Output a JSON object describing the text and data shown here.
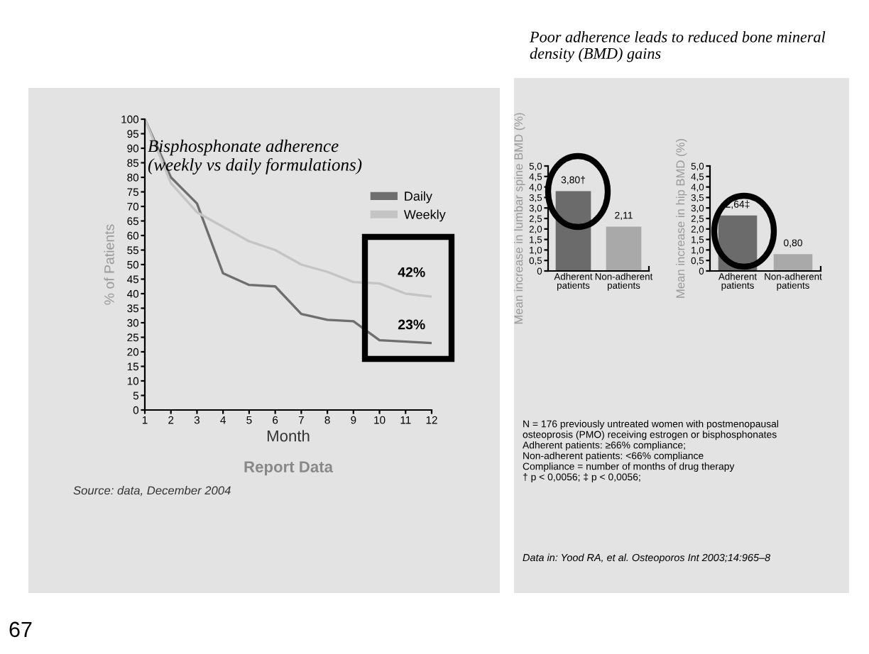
{
  "chart_data": [
    {
      "type": "line",
      "title": "Bisphosphonate adherence\n(weekly vs daily formulations)",
      "xlabel": "Month",
      "ylabel": "% of Patients",
      "x": [
        1,
        2,
        3,
        4,
        5,
        6,
        7,
        8,
        9,
        10,
        11,
        12
      ],
      "series": [
        {
          "name": "Daily",
          "color": "#6e6e6e",
          "values": [
            100,
            80,
            71,
            47,
            43,
            42.5,
            33,
            31,
            30.5,
            24,
            23.5,
            23
          ]
        },
        {
          "name": "Weekly",
          "color": "#c4c4c4",
          "values": [
            100,
            78,
            68,
            63,
            58,
            55,
            50,
            47.5,
            44,
            43.5,
            40,
            39
          ]
        }
      ],
      "xlim": [
        1,
        12
      ],
      "xticks": [
        1,
        2,
        3,
        4,
        5,
        6,
        7,
        8,
        9,
        10,
        11,
        12
      ],
      "ylim": [
        0,
        100
      ],
      "yticks": [
        0,
        5,
        10,
        15,
        20,
        25,
        30,
        35,
        40,
        45,
        50,
        55,
        60,
        65,
        70,
        75,
        80,
        85,
        90,
        95,
        100
      ],
      "legend": "right",
      "grid": false,
      "marker": "none",
      "line_style": "solid",
      "annotations": [
        "Report Data",
        "Source: data, December 2004",
        "42%",
        "23%"
      ]
    },
    {
      "type": "bar",
      "title": "Poor adherence leads to reduced bone mineral\ndensity (BMD) gains",
      "ylabel": "Mean increase in lumbar spine BMD (%)",
      "categories": [
        "Adherent\npatients",
        "Non-adherent\npatients"
      ],
      "values": [
        3.8,
        2.11
      ],
      "colors": [
        "#6b6b6b",
        "#a9a9a9"
      ],
      "value_labels": [
        "3,80†",
        "2,11"
      ],
      "ylim": [
        0,
        5
      ],
      "yticks": [
        0,
        {
          "value": 0.5,
          "label": "0,5"
        },
        {
          "value": 1,
          "label": "1,0"
        },
        {
          "value": 1.5,
          "label": "1,5"
        },
        {
          "value": 2,
          "label": "2,0"
        },
        {
          "value": 2.5,
          "label": "2,5"
        },
        {
          "value": 3,
          "label": "3,0"
        },
        {
          "value": 3.5,
          "label": "3,5"
        },
        {
          "value": 4,
          "label": "4,0"
        },
        {
          "value": 4.5,
          "label": "4,5"
        },
        {
          "value": 5,
          "label": "5,0"
        }
      ]
    },
    {
      "type": "bar",
      "ylabel": "Mean increase in hip BMD (%)",
      "categories": [
        "Adherent\npatients",
        "Non-adherent\npatients"
      ],
      "values": [
        2.64,
        0.8
      ],
      "colors": [
        "#6b6b6b",
        "#a9a9a9"
      ],
      "value_labels": [
        "2,64‡",
        "0,80"
      ],
      "ylim": [
        0,
        5
      ],
      "yticks": [
        0,
        {
          "value": 0.5,
          "label": "0,5"
        },
        {
          "value": 1,
          "label": "1,0"
        },
        {
          "value": 1.5,
          "label": "1,5"
        },
        {
          "value": 2,
          "label": "2,0"
        },
        {
          "value": 2.5,
          "label": "2,5"
        },
        {
          "value": 3,
          "label": "3,0"
        },
        {
          "value": 3.5,
          "label": "3,5"
        },
        {
          "value": 4,
          "label": "4,0"
        },
        {
          "value": 4.5,
          "label": "4,5"
        },
        {
          "value": 5,
          "label": "5,0"
        }
      ],
      "annotations": [
        "N = 176 previously untreated women with postmenopausal\nosteoprosis (PMO) receiving estrogen or bisphosphonates\nAdherent patients: ≥66% compliance;\nNon-adherent patients: <66% compliance\nCompliance = number of months of drug therapy\n† p < 0,0056; ‡ p < 0,0056;",
        "Data in: Yood RA, et al. Osteoporos Int 2003;14:965–8",
        "67"
      ]
    }
  ]
}
